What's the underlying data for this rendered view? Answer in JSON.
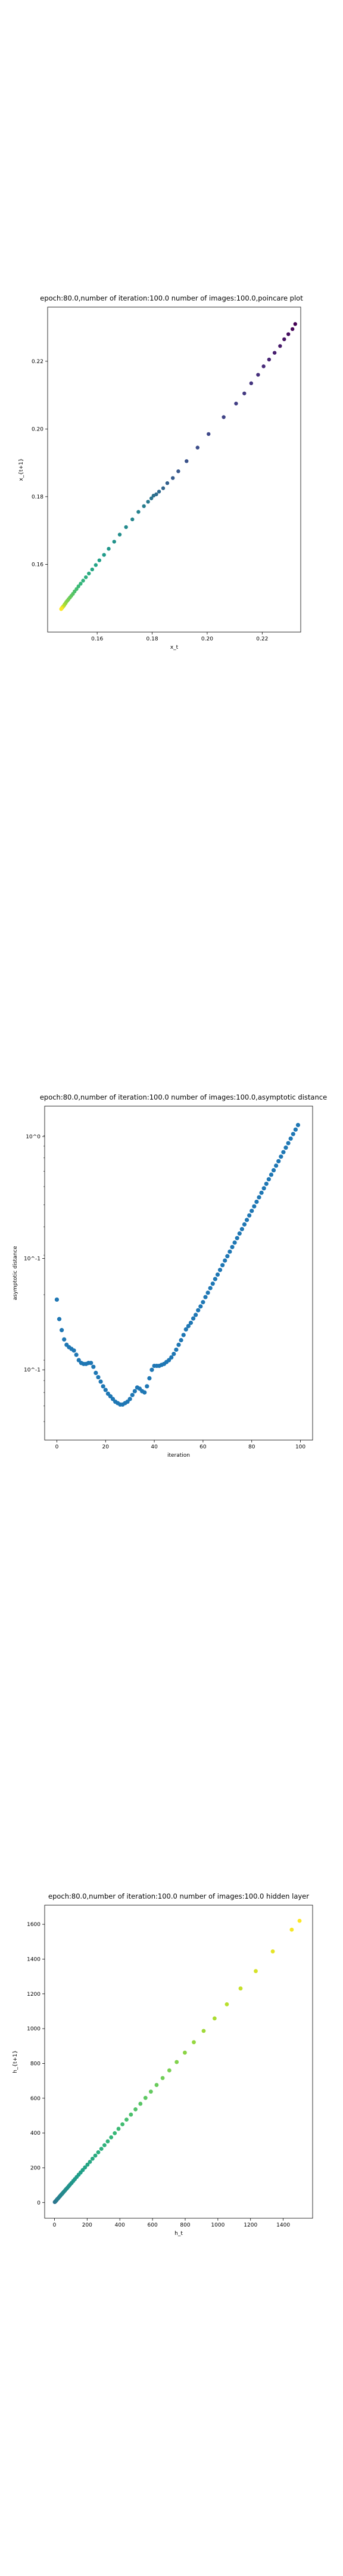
{
  "chart_data": [
    {
      "type": "scatter",
      "title": "epoch:80.0,number of iteration:100.0 number of images:100.0,poincare plot",
      "xlabel": "x_t",
      "ylabel": "x_{t+1}",
      "xlim": [
        0.142,
        0.234
      ],
      "ylim": [
        0.14,
        0.236
      ],
      "xticks": [
        0.16,
        0.18,
        0.2,
        0.22
      ],
      "xtick_labels": [
        "0.16",
        "0.18",
        "0.20",
        "0.22"
      ],
      "yticks": [
        0.16,
        0.18,
        0.2,
        0.22
      ],
      "ytick_labels": [
        "0.16",
        "0.18",
        "0.20",
        "0.22"
      ],
      "grid": false,
      "colormap": "viridis (dark purple at start of sequence, yellow at end)",
      "points": [
        [
          0.232,
          0.231
        ],
        [
          0.231,
          0.2295
        ],
        [
          0.2295,
          0.228
        ],
        [
          0.228,
          0.2265
        ],
        [
          0.2265,
          0.2245
        ],
        [
          0.2245,
          0.2225
        ],
        [
          0.2225,
          0.2205
        ],
        [
          0.2205,
          0.2185
        ],
        [
          0.2185,
          0.216
        ],
        [
          0.216,
          0.2135
        ],
        [
          0.2135,
          0.2105
        ],
        [
          0.2105,
          0.2075
        ],
        [
          0.206,
          0.2035
        ],
        [
          0.2005,
          0.1985
        ],
        [
          0.1965,
          0.1945
        ],
        [
          0.1925,
          0.1905
        ],
        [
          0.1895,
          0.1875
        ],
        [
          0.1875,
          0.1855
        ],
        [
          0.1855,
          0.184
        ],
        [
          0.184,
          0.1825
        ],
        [
          0.1825,
          0.1815
        ],
        [
          0.1815,
          0.1807
        ],
        [
          0.1805,
          0.1803
        ],
        [
          0.1797,
          0.1795
        ],
        [
          0.1785,
          0.1785
        ],
        [
          0.177,
          0.1772
        ],
        [
          0.175,
          0.1755
        ],
        [
          0.1728,
          0.1733
        ],
        [
          0.1705,
          0.171
        ],
        [
          0.1682,
          0.1688
        ],
        [
          0.1662,
          0.1667
        ],
        [
          0.1642,
          0.1646
        ],
        [
          0.1625,
          0.1628
        ],
        [
          0.1608,
          0.1612
        ],
        [
          0.1595,
          0.1598
        ],
        [
          0.1582,
          0.1585
        ],
        [
          0.157,
          0.1573
        ],
        [
          0.1559,
          0.1562
        ],
        [
          0.1549,
          0.1552
        ],
        [
          0.154,
          0.1543
        ],
        [
          0.1532,
          0.1535
        ],
        [
          0.1525,
          0.1527
        ],
        [
          0.1518,
          0.152
        ],
        [
          0.1512,
          0.1513
        ],
        [
          0.1506,
          0.1507
        ],
        [
          0.1501,
          0.1502
        ],
        [
          0.1496,
          0.1497
        ],
        [
          0.1492,
          0.1493
        ],
        [
          0.1488,
          0.1489
        ],
        [
          0.1485,
          0.1485
        ],
        [
          0.1482,
          0.1482
        ],
        [
          0.148,
          0.1479
        ],
        [
          0.1478,
          0.1477
        ],
        [
          0.1476,
          0.1475
        ],
        [
          0.1474,
          0.1473
        ],
        [
          0.1473,
          0.1472
        ],
        [
          0.1472,
          0.1471
        ],
        [
          0.1471,
          0.147
        ],
        [
          0.147,
          0.1469
        ],
        [
          0.1469,
          0.1468
        ]
      ]
    },
    {
      "type": "scatter",
      "title": "epoch:80.0,number of iteration:100.0  number of images:100.0,asymptotic distance",
      "xlabel": "iteration",
      "ylabel": "asymptotic distance",
      "yscale": "log",
      "xlim": [
        -5,
        105
      ],
      "ylim": [
        0.05,
        1.35
      ],
      "xticks": [
        0,
        20,
        40,
        60,
        80,
        100
      ],
      "xtick_labels": [
        "0",
        "20",
        "40",
        "60",
        "80",
        "100"
      ],
      "ytick_labels": [
        "10^-1",
        "10^-1",
        "10^0"
      ],
      "grid": false,
      "color": "#1f77b4",
      "points": [
        [
          0,
          0.2
        ],
        [
          1,
          0.165
        ],
        [
          2,
          0.148
        ],
        [
          3,
          0.135
        ],
        [
          4,
          0.128
        ],
        [
          5,
          0.125
        ],
        [
          6,
          0.123
        ],
        [
          7,
          0.121
        ],
        [
          8,
          0.116
        ],
        [
          9,
          0.11
        ],
        [
          10,
          0.107
        ],
        [
          11,
          0.106
        ],
        [
          12,
          0.106
        ],
        [
          13,
          0.107
        ],
        [
          14,
          0.107
        ],
        [
          15,
          0.103
        ],
        [
          16,
          0.097
        ],
        [
          17,
          0.093
        ],
        [
          18,
          0.089
        ],
        [
          19,
          0.085
        ],
        [
          20,
          0.082
        ],
        [
          21,
          0.079
        ],
        [
          22,
          0.077
        ],
        [
          23,
          0.075
        ],
        [
          24,
          0.073
        ],
        [
          25,
          0.072
        ],
        [
          26,
          0.071
        ],
        [
          27,
          0.071
        ],
        [
          28,
          0.072
        ],
        [
          29,
          0.073
        ],
        [
          30,
          0.075
        ],
        [
          31,
          0.078
        ],
        [
          32,
          0.081
        ],
        [
          33,
          0.084
        ],
        [
          34,
          0.083
        ],
        [
          35,
          0.081
        ],
        [
          36,
          0.08
        ],
        [
          37,
          0.085
        ],
        [
          38,
          0.092
        ],
        [
          39,
          0.1
        ],
        [
          40,
          0.104
        ],
        [
          41,
          0.104
        ],
        [
          42,
          0.104
        ],
        [
          43,
          0.105
        ],
        [
          44,
          0.106
        ],
        [
          45,
          0.108
        ],
        [
          46,
          0.11
        ],
        [
          47,
          0.113
        ],
        [
          48,
          0.117
        ],
        [
          49,
          0.122
        ],
        [
          50,
          0.128
        ],
        [
          51,
          0.134
        ],
        [
          52,
          0.141
        ],
        [
          53,
          0.149
        ],
        [
          54,
          0.154
        ],
        [
          55,
          0.159
        ],
        [
          56,
          0.166
        ],
        [
          57,
          0.172
        ],
        [
          58,
          0.18
        ],
        [
          59,
          0.187
        ],
        [
          60,
          0.195
        ],
        [
          61,
          0.205
        ],
        [
          62,
          0.214
        ],
        [
          63,
          0.224
        ],
        [
          64,
          0.234
        ],
        [
          65,
          0.245
        ],
        [
          66,
          0.256
        ],
        [
          67,
          0.268
        ],
        [
          68,
          0.281
        ],
        [
          69,
          0.294
        ],
        [
          70,
          0.307
        ],
        [
          71,
          0.321
        ],
        [
          72,
          0.336
        ],
        [
          73,
          0.351
        ],
        [
          74,
          0.367
        ],
        [
          75,
          0.384
        ],
        [
          76,
          0.401
        ],
        [
          77,
          0.42
        ],
        [
          78,
          0.439
        ],
        [
          79,
          0.459
        ],
        [
          80,
          0.48
        ],
        [
          81,
          0.502
        ],
        [
          82,
          0.525
        ],
        [
          83,
          0.549
        ],
        [
          84,
          0.574
        ],
        [
          85,
          0.6
        ],
        [
          86,
          0.627
        ],
        [
          87,
          0.656
        ],
        [
          88,
          0.686
        ],
        [
          89,
          0.717
        ],
        [
          90,
          0.75
        ],
        [
          91,
          0.784
        ],
        [
          92,
          0.82
        ],
        [
          93,
          0.857
        ],
        [
          94,
          0.896
        ],
        [
          95,
          0.937
        ],
        [
          96,
          0.98
        ],
        [
          97,
          1.025
        ],
        [
          98,
          1.071
        ],
        [
          99,
          1.12
        ]
      ]
    },
    {
      "type": "scatter",
      "title": "epoch:80.0,number of iteration:100.0  number of images:100.0 hidden layer",
      "xlabel": "h_t",
      "ylabel": "h_{t+1}",
      "xlim": [
        -60,
        1580
      ],
      "ylim": [
        -90,
        1710
      ],
      "xticks": [
        0,
        200,
        400,
        600,
        800,
        1000,
        1200,
        1400
      ],
      "xtick_labels": [
        "0",
        "200",
        "400",
        "600",
        "800",
        "1000",
        "1200",
        "1400"
      ],
      "yticks": [
        0,
        200,
        400,
        600,
        800,
        1000,
        1200,
        1400,
        1600
      ],
      "ytick_labels": [
        "0",
        "200",
        "400",
        "600",
        "800",
        "1000",
        "1200",
        "1400",
        "1600"
      ],
      "grid": false,
      "colormap": "viridis (teal/blue near origin, yellow-green further out)",
      "points": [
        [
          2,
          3
        ],
        [
          5,
          6
        ],
        [
          8,
          9
        ],
        [
          12,
          13
        ],
        [
          16,
          18
        ],
        [
          20,
          22
        ],
        [
          25,
          27
        ],
        [
          30,
          33
        ],
        [
          35,
          38
        ],
        [
          40,
          44
        ],
        [
          46,
          50
        ],
        [
          52,
          56
        ],
        [
          58,
          63
        ],
        [
          65,
          70
        ],
        [
          72,
          78
        ],
        [
          80,
          86
        ],
        [
          88,
          95
        ],
        [
          96,
          104
        ],
        [
          105,
          113
        ],
        [
          115,
          124
        ],
        [
          125,
          135
        ],
        [
          136,
          147
        ],
        [
          148,
          160
        ],
        [
          160,
          173
        ],
        [
          173,
          187
        ],
        [
          187,
          202
        ],
        [
          202,
          218
        ],
        [
          217,
          234
        ],
        [
          233,
          252
        ],
        [
          250,
          270
        ],
        [
          268,
          289
        ],
        [
          287,
          309
        ],
        [
          306,
          330
        ],
        [
          326,
          352
        ],
        [
          347,
          375
        ],
        [
          369,
          399
        ],
        [
          392,
          424
        ],
        [
          416,
          450
        ],
        [
          441,
          477
        ],
        [
          468,
          506
        ],
        [
          496,
          536
        ],
        [
          526,
          568
        ],
        [
          557,
          602
        ],
        [
          590,
          638
        ],
        [
          625,
          676
        ],
        [
          662,
          716
        ],
        [
          703,
          760
        ],
        [
          748,
          808
        ],
        [
          798,
          862
        ],
        [
          853,
          922
        ],
        [
          913,
          987
        ],
        [
          980,
          1059
        ],
        [
          1055,
          1140
        ],
        [
          1139,
          1231
        ],
        [
          1232,
          1331
        ],
        [
          1336,
          1444
        ],
        [
          1452,
          1569
        ],
        [
          1500,
          1620
        ]
      ]
    }
  ]
}
